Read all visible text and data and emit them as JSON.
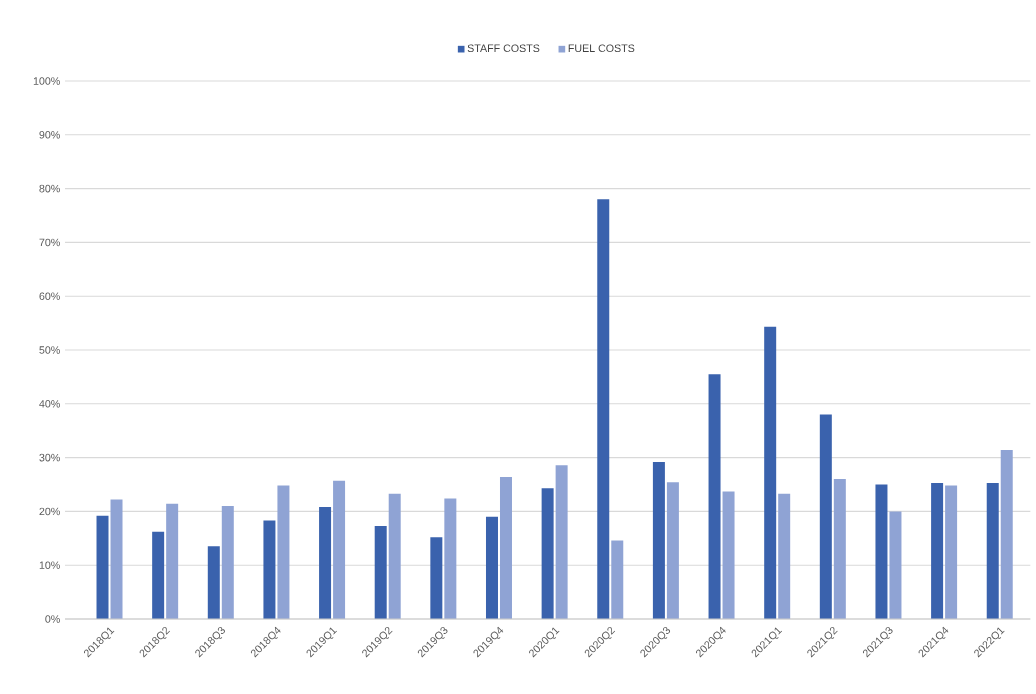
{
  "chart_data": {
    "type": "bar",
    "categories": [
      "2018Q1",
      "2018Q2",
      "2018Q3",
      "2018Q4",
      "2019Q1",
      "2019Q2",
      "2019Q3",
      "2019Q4",
      "2020Q1",
      "2020Q2",
      "2020Q3",
      "2020Q4",
      "2021Q1",
      "2021Q2",
      "2021Q3",
      "2021Q4",
      "2022Q1"
    ],
    "series": [
      {
        "name": "STAFF COSTS",
        "color": "#3a62ad",
        "values": [
          19.2,
          16.2,
          13.5,
          18.3,
          20.8,
          17.3,
          15.2,
          19.0,
          24.3,
          78.0,
          29.2,
          45.5,
          54.3,
          38.0,
          25.0,
          25.3,
          25.3
        ]
      },
      {
        "name": "FUEL COSTS",
        "color": "#8fa3d4",
        "values": [
          22.2,
          21.4,
          21.0,
          24.8,
          25.7,
          23.3,
          22.4,
          26.4,
          28.6,
          14.6,
          25.4,
          23.7,
          23.3,
          26.0,
          20.0,
          24.8,
          31.4
        ]
      }
    ],
    "ylim": [
      0,
      100
    ],
    "yticks": [
      {
        "value": 0,
        "label": "0%"
      },
      {
        "value": 10,
        "label": "10%"
      },
      {
        "value": 20,
        "label": "20%"
      },
      {
        "value": 30,
        "label": "30%"
      },
      {
        "value": 40,
        "label": "40%"
      },
      {
        "value": 50,
        "label": "50%"
      },
      {
        "value": 60,
        "label": "60%"
      },
      {
        "value": 70,
        "label": "70%"
      },
      {
        "value": 80,
        "label": "80%"
      },
      {
        "value": 90,
        "label": "90%"
      },
      {
        "value": 100,
        "label": "100%"
      }
    ],
    "grid": "y",
    "legend": "top"
  }
}
